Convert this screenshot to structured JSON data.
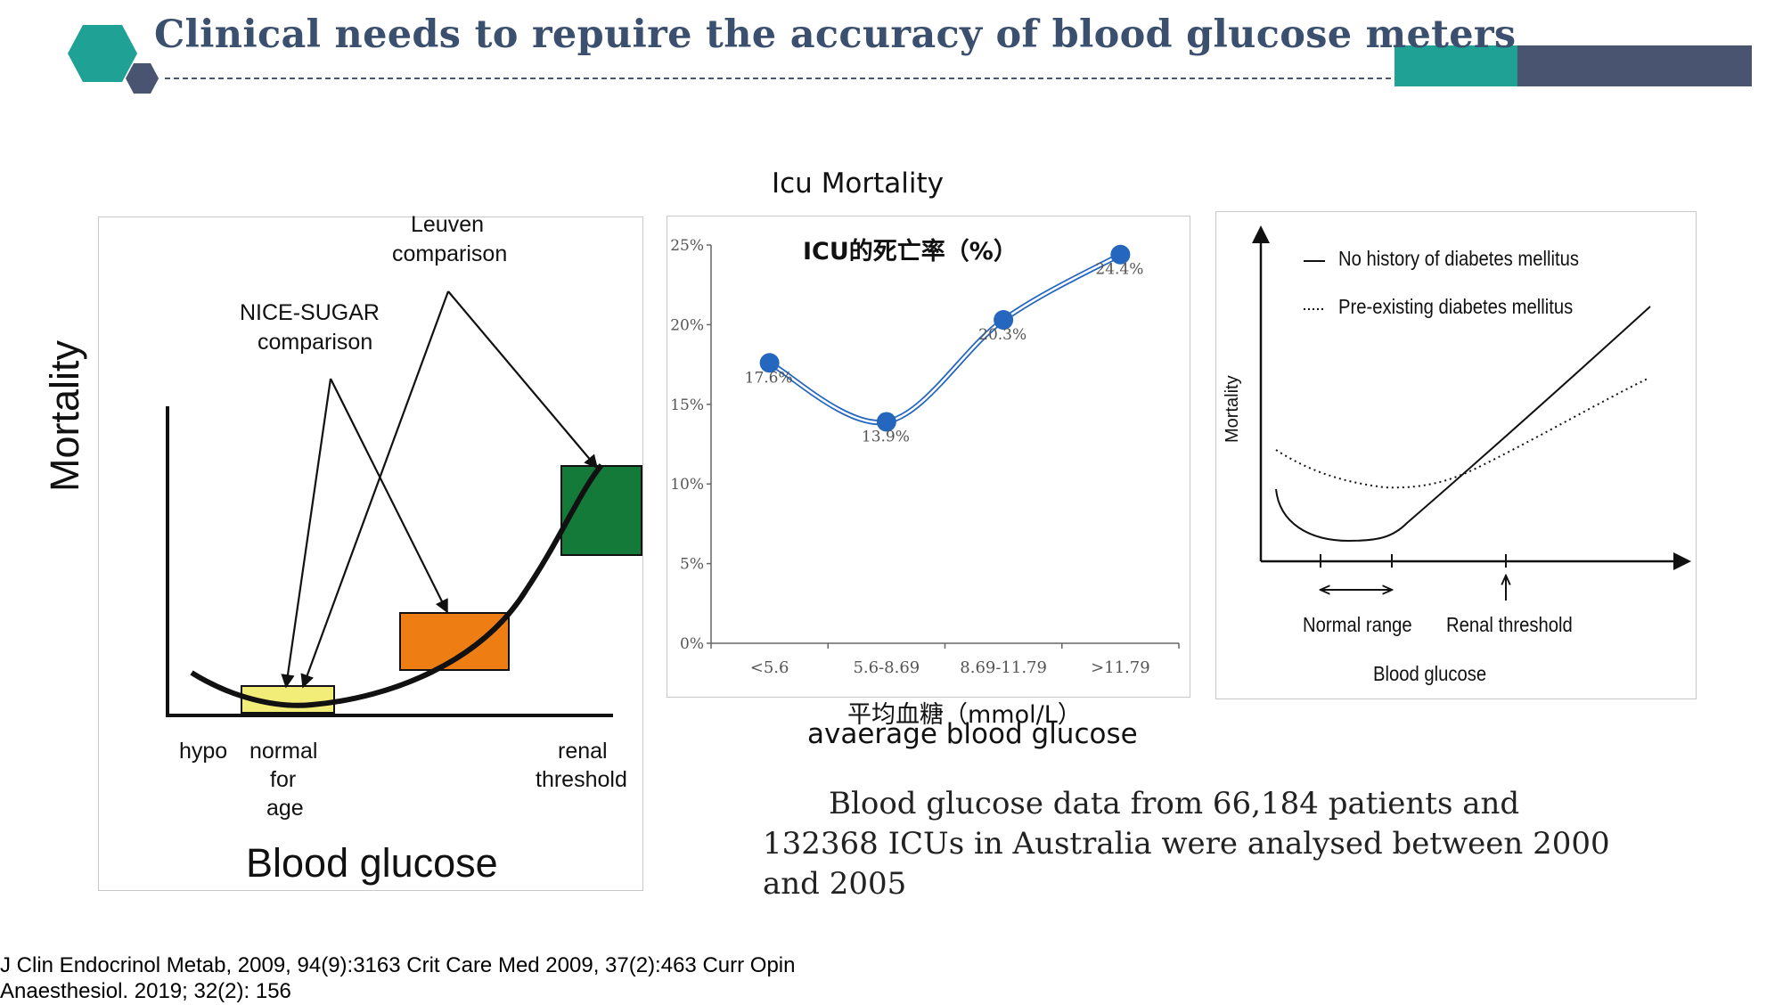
{
  "header": {
    "title": "Clinical needs to repuire the accuracy of blood glucose meters",
    "colors": {
      "teal": "#1fa195",
      "slate": "#485470"
    }
  },
  "left_diagram": {
    "ylabel": "Mortality",
    "xlabel": "Blood glucose",
    "label_leuven": [
      "Leuven",
      "comparison"
    ],
    "label_nice": [
      "NICE-SUGAR",
      "comparison"
    ],
    "label_hypo": "hypo",
    "label_normal": [
      "normal",
      "for",
      "age"
    ],
    "label_renal": [
      "renal",
      "threshold"
    ],
    "box_colors": {
      "yellow": "#f2ec78",
      "orange": "#ee7d14",
      "green": "#137a3a"
    }
  },
  "chart_heading": "Icu Mortality",
  "chart_data": [
    {
      "type": "line",
      "title": "ICU的死亡率（%）",
      "xlabel": "平均血糖（mmol/L）",
      "xlabel_en": "avaerage blood glucose",
      "categories": [
        "<5.6",
        "5.6-8.69",
        "8.69-11.79",
        ">11.79"
      ],
      "values": [
        17.6,
        13.9,
        20.3,
        24.4
      ],
      "data_labels": [
        "17.6%",
        "13.9%",
        "20.3%",
        "24.4%"
      ],
      "y_ticks": [
        "25%",
        "20%",
        "15%",
        "10%",
        "5%",
        "0%"
      ],
      "ylim": [
        0,
        25
      ],
      "grid": false,
      "color": "#2566be"
    },
    {
      "type": "line",
      "ylabel": "Mortality",
      "xlabel": "Blood glucose",
      "series": [
        {
          "name": "No history of diabetes mellitus",
          "style": "solid"
        },
        {
          "name": "Pre-existing diabetes mellitus",
          "style": "dotted"
        }
      ],
      "annotations": [
        "Normal range",
        "Renal threshold"
      ]
    }
  ],
  "description": {
    "text": "Blood glucose data from 66,184 patients and 132368 ICUs in Australia were analysed between 2000 and 2005"
  },
  "references": {
    "line1": "J Clin Endocrinol Metab, 2009, 94(9):3163   Crit Care Med 2009, 37(2):463   Curr Opin",
    "line2": "Anaesthesiol. 2019; 32(2): 156"
  }
}
